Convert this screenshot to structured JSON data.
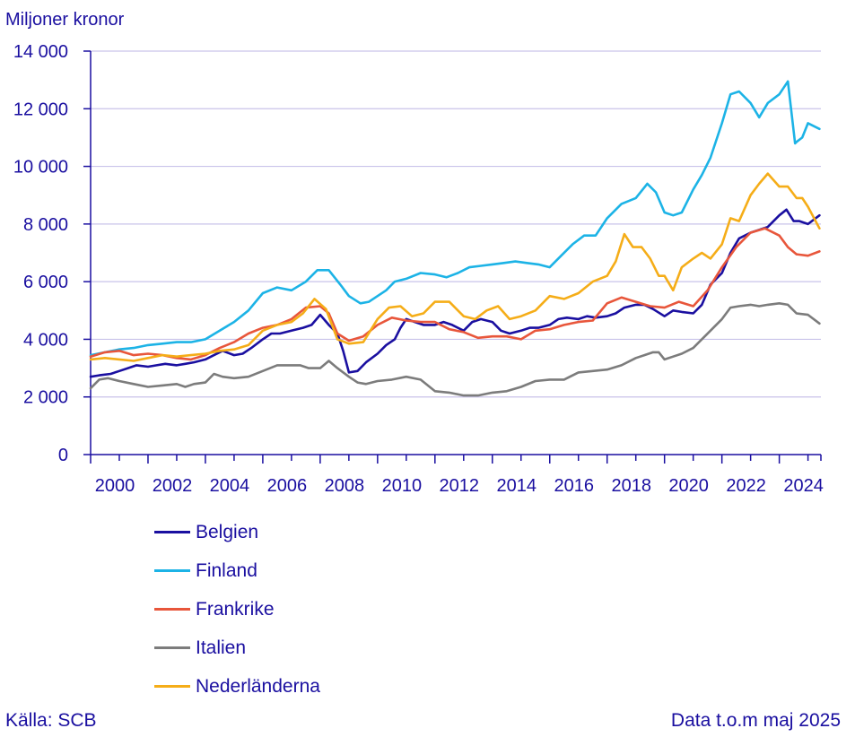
{
  "chart_data": {
    "type": "line",
    "ylabel": "Miljoner kronor",
    "ylim": [
      0,
      14000
    ],
    "xlim": [
      2000,
      2025.45
    ],
    "yticks": [
      0,
      2000,
      4000,
      6000,
      8000,
      10000,
      12000,
      14000
    ],
    "ytick_labels": [
      "0",
      "2 000",
      "4 000",
      "6 000",
      "8 000",
      "10 000",
      "12 000",
      "14 000"
    ],
    "xticks": [
      2000,
      2002,
      2004,
      2006,
      2008,
      2010,
      2012,
      2014,
      2016,
      2018,
      2020,
      2022,
      2024
    ],
    "xtick_labels": [
      "2000",
      "2002",
      "2004",
      "2006",
      "2008",
      "2010",
      "2012",
      "2014",
      "2016",
      "2018",
      "2020",
      "2022",
      "2024"
    ],
    "grid": true,
    "series": [
      {
        "name": "Belgien",
        "color": "#1a0fa0",
        "x": [
          2000,
          2000.3,
          2000.7,
          2001,
          2001.3,
          2001.6,
          2002,
          2002.3,
          2002.6,
          2003,
          2003.3,
          2003.6,
          2004,
          2004.3,
          2004.6,
          2005,
          2005.3,
          2005.6,
          2006,
          2006.3,
          2006.6,
          2007,
          2007.4,
          2007.7,
          2008,
          2008.3,
          2008.6,
          2008.8,
          2009,
          2009.3,
          2009.6,
          2010,
          2010.3,
          2010.6,
          2010.8,
          2011,
          2011.3,
          2011.6,
          2012,
          2012.3,
          2012.6,
          2013,
          2013.3,
          2013.6,
          2014,
          2014.3,
          2014.6,
          2015,
          2015.3,
          2015.6,
          2016,
          2016.3,
          2016.6,
          2017,
          2017.3,
          2017.6,
          2018,
          2018.3,
          2018.6,
          2019,
          2019.3,
          2019.6,
          2020,
          2020.3,
          2020.6,
          2021,
          2021.3,
          2021.6,
          2022,
          2022.3,
          2022.6,
          2023,
          2023.3,
          2023.6,
          2024,
          2024.25,
          2024.5,
          2024.7,
          2025,
          2025.4
        ],
        "y": [
          2700,
          2750,
          2800,
          2900,
          3000,
          3100,
          3050,
          3100,
          3150,
          3100,
          3150,
          3200,
          3300,
          3450,
          3600,
          3450,
          3500,
          3700,
          4000,
          4200,
          4200,
          4300,
          4400,
          4500,
          4850,
          4500,
          4200,
          3600,
          2850,
          2900,
          3200,
          3500,
          3800,
          4000,
          4400,
          4700,
          4600,
          4500,
          4500,
          4600,
          4500,
          4300,
          4600,
          4700,
          4600,
          4300,
          4200,
          4300,
          4400,
          4400,
          4500,
          4700,
          4750,
          4700,
          4800,
          4750,
          4800,
          4900,
          5100,
          5200,
          5200,
          5050,
          4800,
          5000,
          4950,
          4900,
          5200,
          5900,
          6300,
          7000,
          7500,
          7700,
          7800,
          7900,
          8300,
          8500,
          8100,
          8100,
          8000,
          8300
        ]
      },
      {
        "name": "Finland",
        "color": "#1cb3e6",
        "x": [
          2000,
          2000.5,
          2001,
          2001.5,
          2002,
          2002.5,
          2003,
          2003.5,
          2004,
          2004.5,
          2005,
          2005.5,
          2006,
          2006.5,
          2007,
          2007.5,
          2007.9,
          2008.3,
          2008.7,
          2009,
          2009.4,
          2009.7,
          2010,
          2010.3,
          2010.6,
          2011,
          2011.5,
          2012,
          2012.4,
          2012.8,
          2013.2,
          2013.6,
          2014,
          2014.4,
          2014.8,
          2015.2,
          2015.6,
          2016,
          2016.4,
          2016.8,
          2017.2,
          2017.6,
          2018,
          2018.5,
          2019,
          2019.4,
          2019.7,
          2020,
          2020.3,
          2020.6,
          2021,
          2021.3,
          2021.6,
          2022,
          2022.3,
          2022.6,
          2023,
          2023.3,
          2023.6,
          2024,
          2024.3,
          2024.55,
          2024.6,
          2024.8,
          2025,
          2025.4
        ],
        "y": [
          3450,
          3550,
          3650,
          3700,
          3800,
          3850,
          3900,
          3900,
          4000,
          4300,
          4600,
          5000,
          5600,
          5800,
          5700,
          6000,
          6400,
          6400,
          5900,
          5500,
          5250,
          5300,
          5500,
          5700,
          6000,
          6100,
          6300,
          6250,
          6150,
          6300,
          6500,
          6550,
          6600,
          6650,
          6700,
          6650,
          6600,
          6500,
          6900,
          7300,
          7600,
          7600,
          8200,
          8700,
          8900,
          9400,
          9100,
          8400,
          8300,
          8400,
          9200,
          9700,
          10300,
          11500,
          12500,
          12600,
          12200,
          11700,
          12200,
          12500,
          12950,
          10800,
          10850,
          11000,
          11500,
          11300
        ]
      },
      {
        "name": "Frankrike",
        "color": "#e8563b",
        "x": [
          2000,
          2000.5,
          2001,
          2001.5,
          2002,
          2002.5,
          2003,
          2003.5,
          2004,
          2004.5,
          2005,
          2005.5,
          2006,
          2006.5,
          2007,
          2007.5,
          2008,
          2008.3,
          2008.6,
          2009,
          2009.5,
          2010,
          2010.5,
          2011,
          2011.5,
          2012,
          2012.5,
          2013,
          2013.5,
          2014,
          2014.5,
          2015,
          2015.5,
          2016,
          2016.5,
          2017,
          2017.5,
          2018,
          2018.5,
          2019,
          2019.5,
          2020,
          2020.5,
          2021,
          2021.5,
          2022,
          2022.5,
          2023,
          2023.5,
          2024,
          2024.3,
          2024.6,
          2025,
          2025.4
        ],
        "y": [
          3400,
          3550,
          3600,
          3450,
          3500,
          3450,
          3350,
          3300,
          3450,
          3700,
          3900,
          4200,
          4400,
          4500,
          4700,
          5100,
          5150,
          4900,
          4200,
          3950,
          4100,
          4500,
          4750,
          4650,
          4600,
          4600,
          4350,
          4250,
          4050,
          4100,
          4100,
          4000,
          4300,
          4350,
          4500,
          4600,
          4650,
          5250,
          5450,
          5300,
          5150,
          5100,
          5300,
          5150,
          5700,
          6500,
          7200,
          7700,
          7850,
          7600,
          7200,
          6950,
          6900,
          7050
        ]
      },
      {
        "name": "Italien",
        "color": "#7c7c7c",
        "x": [
          2000,
          2000.3,
          2000.6,
          2001,
          2001.5,
          2002,
          2002.5,
          2003,
          2003.3,
          2003.6,
          2004,
          2004.3,
          2004.6,
          2005,
          2005.5,
          2006,
          2006.5,
          2007,
          2007.3,
          2007.6,
          2008,
          2008.3,
          2008.6,
          2009,
          2009.3,
          2009.6,
          2010,
          2010.5,
          2011,
          2011.5,
          2012,
          2012.5,
          2013,
          2013.5,
          2014,
          2014.5,
          2015,
          2015.5,
          2016,
          2016.5,
          2017,
          2017.5,
          2018,
          2018.5,
          2019,
          2019.3,
          2019.6,
          2019.8,
          2020,
          2020.3,
          2020.6,
          2021,
          2021.3,
          2021.6,
          2022,
          2022.3,
          2022.6,
          2023,
          2023.3,
          2023.6,
          2024,
          2024.3,
          2024.6,
          2025,
          2025.4
        ],
        "y": [
          2300,
          2600,
          2650,
          2550,
          2450,
          2350,
          2400,
          2450,
          2350,
          2450,
          2500,
          2800,
          2700,
          2650,
          2700,
          2900,
          3100,
          3100,
          3100,
          3000,
          3000,
          3250,
          3000,
          2700,
          2500,
          2450,
          2550,
          2600,
          2700,
          2600,
          2200,
          2150,
          2050,
          2050,
          2150,
          2200,
          2350,
          2550,
          2600,
          2600,
          2850,
          2900,
          2950,
          3100,
          3350,
          3450,
          3550,
          3550,
          3300,
          3400,
          3500,
          3700,
          4000,
          4300,
          4700,
          5100,
          5150,
          5200,
          5150,
          5200,
          5250,
          5200,
          4900,
          4850,
          4550
        ]
      },
      {
        "name": "Nederländerna",
        "color": "#f5ad18",
        "x": [
          2000,
          2000.5,
          2001,
          2001.5,
          2002,
          2002.5,
          2003,
          2003.5,
          2004,
          2004.5,
          2005,
          2005.5,
          2006,
          2006.5,
          2007,
          2007.4,
          2007.8,
          2008.2,
          2008.6,
          2009,
          2009.5,
          2010,
          2010.4,
          2010.8,
          2011.2,
          2011.6,
          2012,
          2012.5,
          2013,
          2013.4,
          2013.8,
          2014.2,
          2014.6,
          2015,
          2015.5,
          2016,
          2016.5,
          2017,
          2017.5,
          2018,
          2018.3,
          2018.6,
          2018.9,
          2019.2,
          2019.5,
          2019.8,
          2020,
          2020.3,
          2020.6,
          2021,
          2021.3,
          2021.6,
          2022,
          2022.3,
          2022.6,
          2023,
          2023.3,
          2023.6,
          2024,
          2024.3,
          2024.6,
          2024.8,
          2025,
          2025.4
        ],
        "y": [
          3300,
          3350,
          3300,
          3250,
          3350,
          3450,
          3400,
          3450,
          3500,
          3600,
          3650,
          3800,
          4300,
          4500,
          4600,
          4900,
          5400,
          5050,
          4000,
          3850,
          3900,
          4700,
          5100,
          5150,
          4800,
          4900,
          5300,
          5300,
          4800,
          4700,
          5000,
          5150,
          4700,
          4800,
          5000,
          5500,
          5400,
          5600,
          6000,
          6200,
          6700,
          7650,
          7200,
          7200,
          6800,
          6200,
          6200,
          5700,
          6500,
          6800,
          7000,
          6800,
          7300,
          8200,
          8100,
          9000,
          9400,
          9750,
          9300,
          9300,
          8900,
          8900,
          8600,
          7850
        ]
      }
    ],
    "source": "Källa: SCB",
    "note": "Data t.o.m maj 2025"
  }
}
